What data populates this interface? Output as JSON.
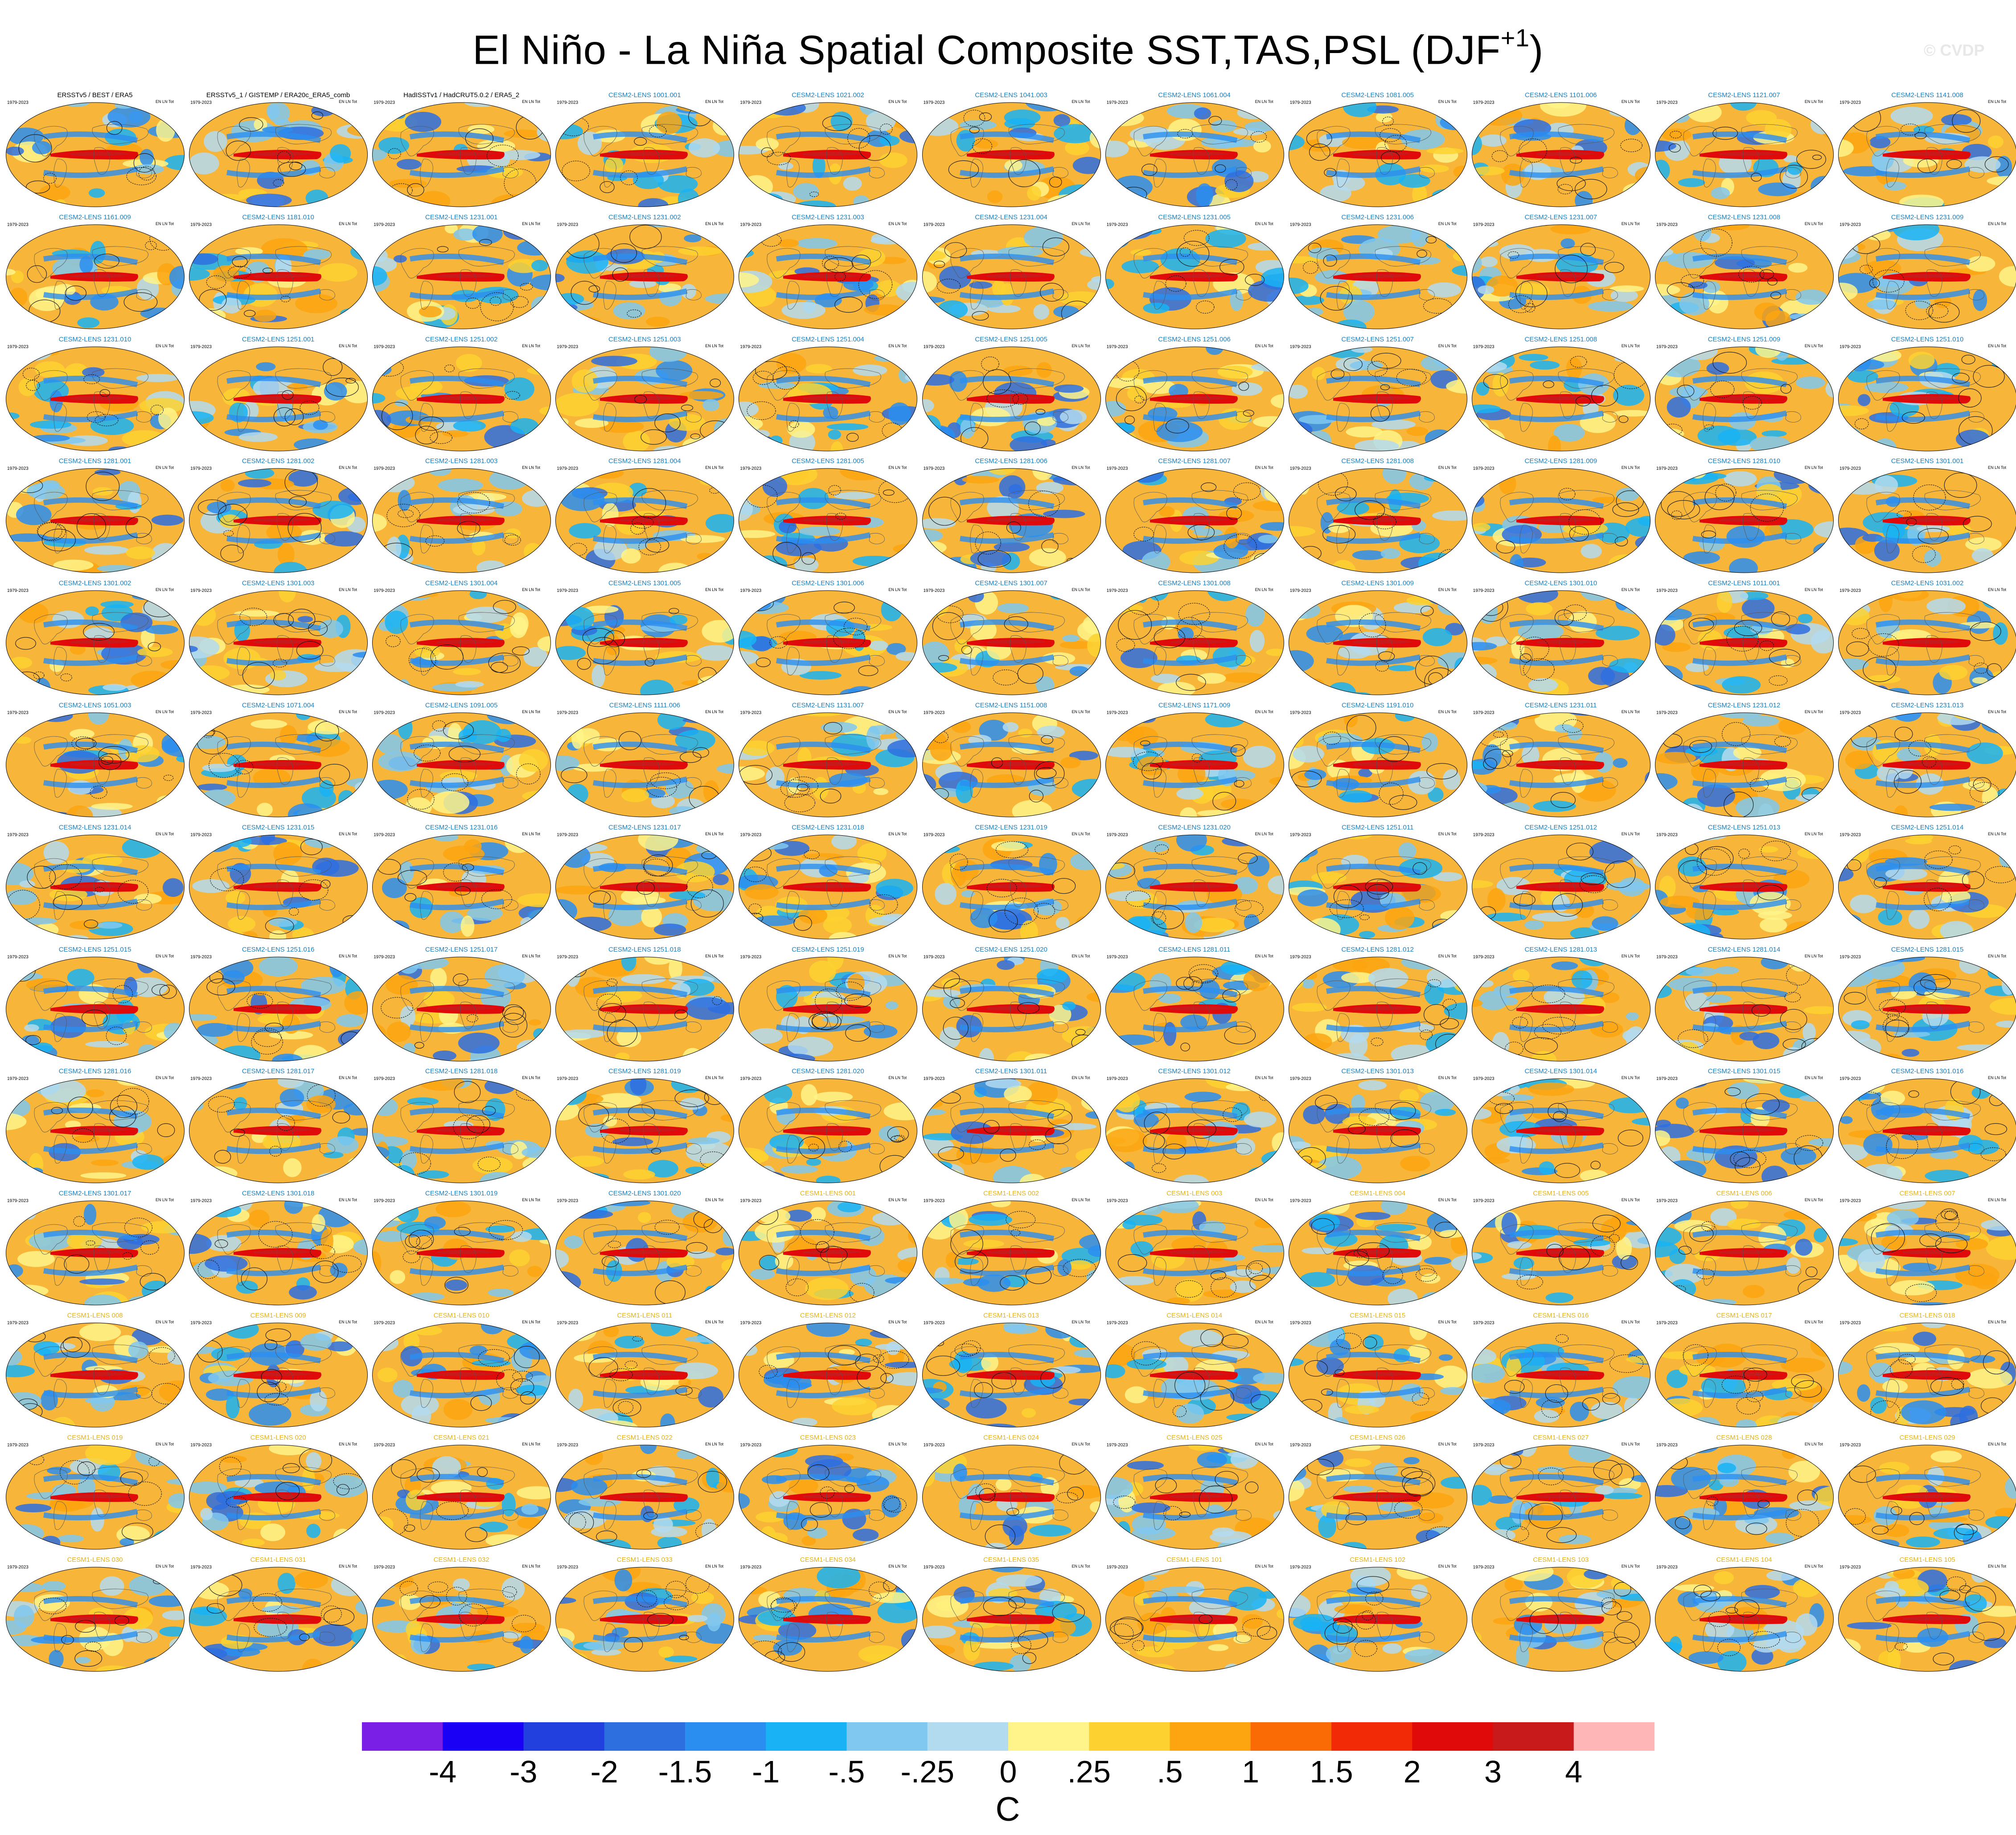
{
  "figure": {
    "title": "El Niño - La Niña Spatial Composite SST,TAS,PSL (DJF",
    "title_sup": "+1",
    "title_close": ")",
    "watermark": "© CVDP",
    "period": "1979-2023",
    "stat_line": "EN LN Tot",
    "colors": {
      "cesm2_title": "#1a7fbf",
      "cesm1_title": "#e3b21a",
      "obs_title": "#000000",
      "contour": "#111111",
      "ocean_base": "#f7b63a"
    }
  },
  "chart_data": {
    "type": "heatmap",
    "title": "El Niño - La Niña Spatial Composite SST,TAS,PSL (DJF+1)",
    "variables": [
      "SST",
      "TAS",
      "PSL"
    ],
    "season": "DJF+1",
    "period": "1979-2023",
    "layout": {
      "rows": 13,
      "columns": 11
    },
    "panels": [
      "ERSSTv5 / BEST / ERA5",
      "ERSSTv5_1 / GISTEMP / ERA20c_ERA5_comb",
      "HadISSTv1 / HadCRUT5.0.2 / ERA5_2",
      "CESM2-LENS 1001.001",
      "CESM2-LENS 1021.002",
      "CESM2-LENS 1041.003",
      "CESM2-LENS 1061.004",
      "CESM2-LENS 1081.005",
      "CESM2-LENS 1101.006",
      "CESM2-LENS 1121.007",
      "CESM2-LENS 1141.008",
      "CESM2-LENS 1161.009",
      "CESM2-LENS 1181.010",
      "CESM2-LENS 1231.001",
      "CESM2-LENS 1231.002",
      "CESM2-LENS 1231.003",
      "CESM2-LENS 1231.004",
      "CESM2-LENS 1231.005",
      "CESM2-LENS 1231.006",
      "CESM2-LENS 1231.007",
      "CESM2-LENS 1231.008",
      "CESM2-LENS 1231.009",
      "CESM2-LENS 1231.010",
      "CESM2-LENS 1251.001",
      "CESM2-LENS 1251.002",
      "CESM2-LENS 1251.003",
      "CESM2-LENS 1251.004",
      "CESM2-LENS 1251.005",
      "CESM2-LENS 1251.006",
      "CESM2-LENS 1251.007",
      "CESM2-LENS 1251.008",
      "CESM2-LENS 1251.009",
      "CESM2-LENS 1251.010",
      "CESM2-LENS 1281.001",
      "CESM2-LENS 1281.002",
      "CESM2-LENS 1281.003",
      "CESM2-LENS 1281.004",
      "CESM2-LENS 1281.005",
      "CESM2-LENS 1281.006",
      "CESM2-LENS 1281.007",
      "CESM2-LENS 1281.008",
      "CESM2-LENS 1281.009",
      "CESM2-LENS 1281.010",
      "CESM2-LENS 1301.001",
      "CESM2-LENS 1301.002",
      "CESM2-LENS 1301.003",
      "CESM2-LENS 1301.004",
      "CESM2-LENS 1301.005",
      "CESM2-LENS 1301.006",
      "CESM2-LENS 1301.007",
      "CESM2-LENS 1301.008",
      "CESM2-LENS 1301.009",
      "CESM2-LENS 1301.010",
      "CESM2-LENS 1011.001",
      "CESM2-LENS 1031.002",
      "CESM2-LENS 1051.003",
      "CESM2-LENS 1071.004",
      "CESM2-LENS 1091.005",
      "CESM2-LENS 1111.006",
      "CESM2-LENS 1131.007",
      "CESM2-LENS 1151.008",
      "CESM2-LENS 1171.009",
      "CESM2-LENS 1191.010",
      "CESM2-LENS 1231.011",
      "CESM2-LENS 1231.012",
      "CESM2-LENS 1231.013",
      "CESM2-LENS 1231.014",
      "CESM2-LENS 1231.015",
      "CESM2-LENS 1231.016",
      "CESM2-LENS 1231.017",
      "CESM2-LENS 1231.018",
      "CESM2-LENS 1231.019",
      "CESM2-LENS 1231.020",
      "CESM2-LENS 1251.011",
      "CESM2-LENS 1251.012",
      "CESM2-LENS 1251.013",
      "CESM2-LENS 1251.014",
      "CESM2-LENS 1251.015",
      "CESM2-LENS 1251.016",
      "CESM2-LENS 1251.017",
      "CESM2-LENS 1251.018",
      "CESM2-LENS 1251.019",
      "CESM2-LENS 1251.020",
      "CESM2-LENS 1281.011",
      "CESM2-LENS 1281.012",
      "CESM2-LENS 1281.013",
      "CESM2-LENS 1281.014",
      "CESM2-LENS 1281.015",
      "CESM2-LENS 1281.016",
      "CESM2-LENS 1281.017",
      "CESM2-LENS 1281.018",
      "CESM2-LENS 1281.019",
      "CESM2-LENS 1281.020",
      "CESM2-LENS 1301.011",
      "CESM2-LENS 1301.012",
      "CESM2-LENS 1301.013",
      "CESM2-LENS 1301.014",
      "CESM2-LENS 1301.015",
      "CESM2-LENS 1301.016",
      "CESM2-LENS 1301.017",
      "CESM2-LENS 1301.018",
      "CESM2-LENS 1301.019",
      "CESM2-LENS 1301.020",
      "CESM1-LENS 001",
      "CESM1-LENS 002",
      "CESM1-LENS 003",
      "CESM1-LENS 004",
      "CESM1-LENS 005",
      "CESM1-LENS 006",
      "CESM1-LENS 007",
      "CESM1-LENS 008",
      "CESM1-LENS 009",
      "CESM1-LENS 010",
      "CESM1-LENS 011",
      "CESM1-LENS 012",
      "CESM1-LENS 013",
      "CESM1-LENS 014",
      "CESM1-LENS 015",
      "CESM1-LENS 016",
      "CESM1-LENS 017",
      "CESM1-LENS 018",
      "CESM1-LENS 019",
      "CESM1-LENS 020",
      "CESM1-LENS 021",
      "CESM1-LENS 022",
      "CESM1-LENS 023",
      "CESM1-LENS 024",
      "CESM1-LENS 025",
      "CESM1-LENS 026",
      "CESM1-LENS 027",
      "CESM1-LENS 028",
      "CESM1-LENS 029",
      "CESM1-LENS 030",
      "CESM1-LENS 031",
      "CESM1-LENS 032",
      "CESM1-LENS 033",
      "CESM1-LENS 034",
      "CESM1-LENS 035",
      "CESM1-LENS 101",
      "CESM1-LENS 102",
      "CESM1-LENS 103",
      "CESM1-LENS 104",
      "CESM1-LENS 105"
    ],
    "colorbar": {
      "unit": "C",
      "tick_labels": [
        "-4",
        "-3",
        "-2",
        "-1.5",
        "-1",
        "-.5",
        "-.25",
        "0",
        ".25",
        ".5",
        "1",
        "1.5",
        "2",
        "3",
        "4"
      ],
      "levels": [
        -4,
        -3,
        -2,
        -1.5,
        -1,
        -0.5,
        -0.25,
        0,
        0.25,
        0.5,
        1,
        1.5,
        2,
        3,
        4
      ],
      "colors": [
        "#7a1fe6",
        "#1a00f5",
        "#2140dd",
        "#2e6fe0",
        "#2a8ef0",
        "#19b3f5",
        "#80c8f0",
        "#b3dbf0",
        "#fff48a",
        "#fdd230",
        "#fca510",
        "#fa6b05",
        "#f22a05",
        "#e00a0a",
        "#c81a1a",
        "#ffb6b6"
      ]
    }
  }
}
